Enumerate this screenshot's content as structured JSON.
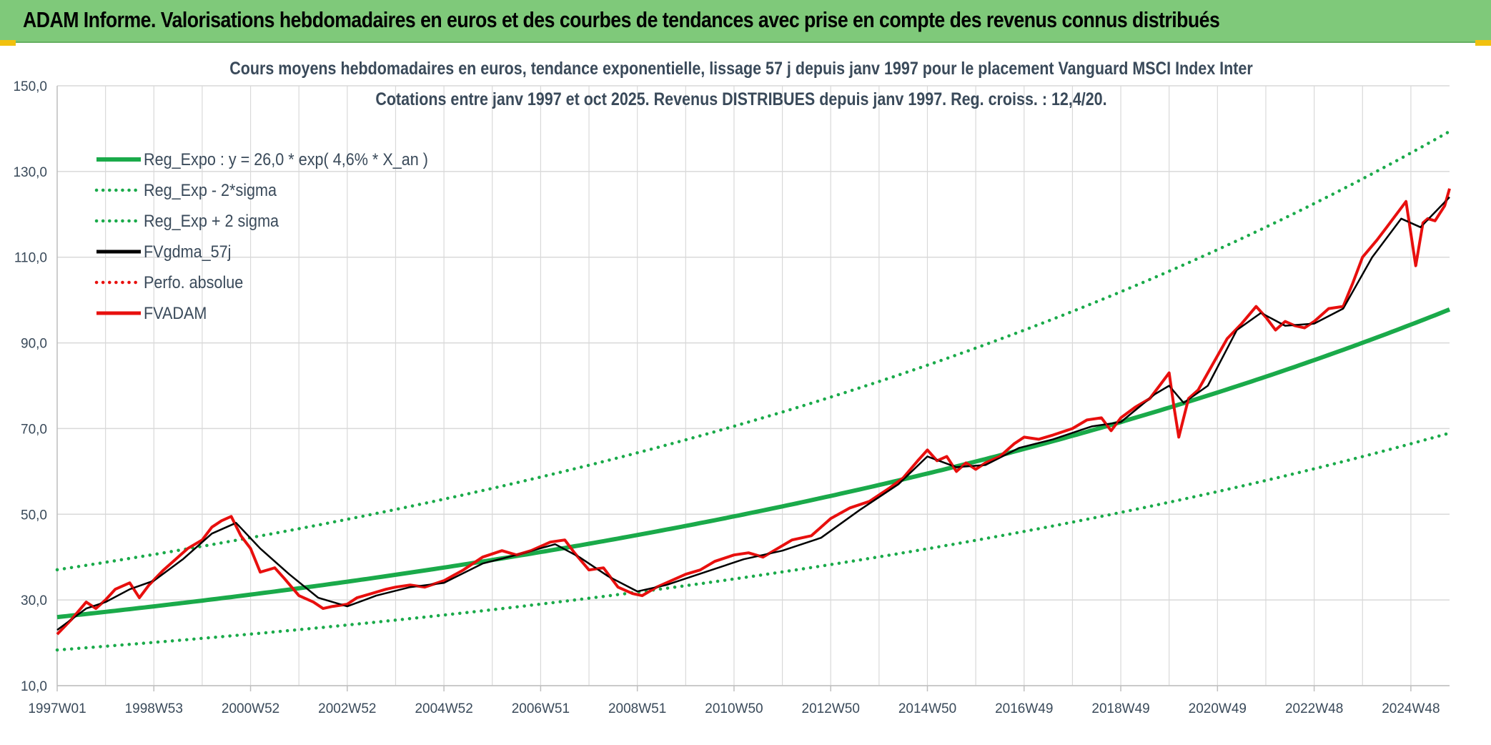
{
  "header": {
    "title": "ADAM Informe. Valorisations hebdomadaires en euros et des courbes de tendances avec prise en compte des revenus connus distribués"
  },
  "colors": {
    "header_bg": "#7fc97a",
    "trend": "#1aaa4a",
    "price": "#e8100e",
    "smoothed": "#000000",
    "grid": "#d9d9d9",
    "text": "#3a4a5a"
  },
  "chart_data": {
    "type": "line",
    "title": "Cours moyens hebdomadaires en euros, tendance exponentielle, lissage 57 j depuis janv 1997 pour le placement Vanguard MSCI Index Inter",
    "subtitle": "Cotations entre janv 1997 et oct 2025. Revenus DISTRIBUES depuis janv 1997. Reg. croiss. : 12,4/20.",
    "ylim": [
      10,
      150
    ],
    "yticks": [
      "150,0",
      "130,0",
      "110,0",
      "90,0",
      "70,0",
      "50,0",
      "30,0",
      "10,0"
    ],
    "xticks": [
      "1997W01",
      "1998W53",
      "2000W52",
      "2002W52",
      "2004W52",
      "2006W51",
      "2008W51",
      "2010W50",
      "2012W50",
      "2014W50",
      "2016W49",
      "2018W49",
      "2020W49",
      "2022W48",
      "2024W48"
    ],
    "xtick_years": [
      1997.0,
      1999.0,
      2001.0,
      2003.0,
      2005.0,
      2007.0,
      2009.0,
      2011.0,
      2013.0,
      2015.0,
      2017.0,
      2019.0,
      2021.0,
      2023.0,
      2025.0
    ],
    "x_range": [
      1997.0,
      2025.8
    ],
    "grid": true,
    "legend_position": "top-left",
    "legend": [
      {
        "label": "Reg_Expo : y = 26,0 * exp( 4,6% *  X_an )",
        "style": "solid-thick",
        "color": "#1aaa4a"
      },
      {
        "label": "Reg_Exp - 2*sigma",
        "style": "dotted",
        "color": "#1aaa4a"
      },
      {
        "label": "Reg_Exp + 2 sigma",
        "style": "dotted",
        "color": "#1aaa4a"
      },
      {
        "label": "FVgdma_57j",
        "style": "solid",
        "color": "#000000"
      },
      {
        "label": "Perfo. absolue",
        "style": "dotted",
        "color": "#e8100e"
      },
      {
        "label": "FVADAM",
        "style": "solid",
        "color": "#e8100e"
      }
    ],
    "regression": {
      "a": 26.0,
      "rate": 0.046,
      "lower_factor": 0.705,
      "upper_factor": 1.425
    },
    "series": [
      {
        "name": "FVADAM",
        "x": [
          1997.0,
          1997.3,
          1997.6,
          1997.8,
          1998.0,
          1998.2,
          1998.5,
          1998.7,
          1998.9,
          1999.2,
          1999.5,
          1999.7,
          2000.0,
          2000.2,
          2000.4,
          2000.6,
          2000.8,
          2001.0,
          2001.2,
          2001.5,
          2001.7,
          2002.0,
          2002.3,
          2002.5,
          2002.7,
          2003.0,
          2003.2,
          2003.5,
          2003.8,
          2004.0,
          2004.3,
          2004.6,
          2005.0,
          2005.4,
          2005.8,
          2006.2,
          2006.5,
          2006.8,
          2007.2,
          2007.5,
          2007.7,
          2008.0,
          2008.3,
          2008.6,
          2008.9,
          2009.1,
          2009.4,
          2009.7,
          2010.0,
          2010.3,
          2010.6,
          2011.0,
          2011.3,
          2011.6,
          2011.9,
          2012.2,
          2012.6,
          2013.0,
          2013.4,
          2013.8,
          2014.2,
          2014.5,
          2014.8,
          2015.0,
          2015.2,
          2015.4,
          2015.6,
          2015.8,
          2016.0,
          2016.2,
          2016.5,
          2016.8,
          2017.0,
          2017.3,
          2017.6,
          2018.0,
          2018.3,
          2018.6,
          2018.8,
          2019.0,
          2019.3,
          2019.6,
          2019.8,
          2020.0,
          2020.1,
          2020.2,
          2020.4,
          2020.6,
          2020.9,
          2021.2,
          2021.5,
          2021.8,
          2022.0,
          2022.2,
          2022.4,
          2022.6,
          2022.8,
          2023.0,
          2023.3,
          2023.6,
          2023.8,
          2024.0,
          2024.3,
          2024.5,
          2024.7,
          2024.9,
          2025.1,
          2025.25,
          2025.35,
          2025.5,
          2025.7,
          2025.8
        ],
        "values": [
          22.0,
          25.5,
          29.5,
          28.0,
          30.0,
          32.5,
          34.0,
          30.5,
          33.5,
          37.0,
          40.0,
          42.0,
          44.0,
          47.0,
          48.5,
          49.5,
          45.0,
          42.0,
          36.5,
          37.5,
          35.0,
          31.0,
          29.5,
          28.0,
          28.5,
          29.0,
          30.5,
          31.5,
          32.5,
          33.0,
          33.5,
          33.0,
          34.5,
          37.0,
          40.0,
          41.5,
          40.5,
          41.5,
          43.5,
          44.0,
          41.0,
          37.0,
          37.5,
          33.0,
          31.5,
          31.0,
          33.0,
          34.5,
          36.0,
          37.0,
          39.0,
          40.5,
          41.0,
          40.0,
          42.0,
          44.0,
          45.0,
          49.0,
          51.5,
          53.0,
          56.0,
          58.5,
          62.5,
          65.0,
          62.5,
          63.5,
          60.0,
          62.0,
          60.5,
          62.0,
          63.5,
          66.5,
          68.0,
          67.5,
          68.5,
          70.0,
          72.0,
          72.5,
          69.5,
          72.5,
          75.0,
          77.0,
          80.0,
          83.0,
          75.0,
          68.0,
          77.0,
          79.0,
          85.0,
          91.0,
          94.5,
          98.5,
          96.0,
          93.0,
          95.0,
          94.0,
          93.5,
          95.0,
          98.0,
          98.5,
          104.0,
          110.0,
          114.0,
          117.0,
          120.0,
          123.0,
          108.0,
          118.0,
          119.0,
          118.5,
          122.0,
          126.0
        ]
      },
      {
        "name": "FVgdma_57j",
        "x": [
          1997.0,
          1997.6,
          1998.0,
          1998.5,
          1999.0,
          1999.6,
          2000.2,
          2000.7,
          2001.2,
          2001.8,
          2002.4,
          2003.0,
          2003.6,
          2004.3,
          2005.0,
          2005.8,
          2006.5,
          2007.3,
          2007.8,
          2008.4,
          2009.0,
          2009.6,
          2010.4,
          2011.2,
          2012.0,
          2012.8,
          2013.6,
          2014.4,
          2015.0,
          2015.6,
          2016.2,
          2016.9,
          2017.6,
          2018.4,
          2019.0,
          2019.7,
          2020.0,
          2020.3,
          2020.8,
          2021.4,
          2021.9,
          2022.4,
          2023.0,
          2023.6,
          2024.2,
          2024.8,
          2025.2,
          2025.8
        ],
        "values": [
          23.0,
          28.0,
          29.5,
          32.5,
          34.5,
          39.5,
          45.5,
          48.0,
          42.0,
          36.0,
          30.5,
          28.5,
          31.0,
          33.0,
          34.0,
          38.5,
          40.5,
          43.0,
          40.0,
          35.5,
          32.0,
          33.5,
          36.5,
          39.5,
          41.5,
          44.5,
          51.0,
          57.0,
          63.5,
          61.0,
          61.5,
          65.5,
          67.5,
          70.5,
          71.5,
          78.0,
          80.0,
          76.0,
          80.0,
          93.0,
          97.0,
          94.0,
          94.5,
          98.0,
          110.0,
          119.0,
          117.0,
          124.0
        ]
      }
    ]
  }
}
